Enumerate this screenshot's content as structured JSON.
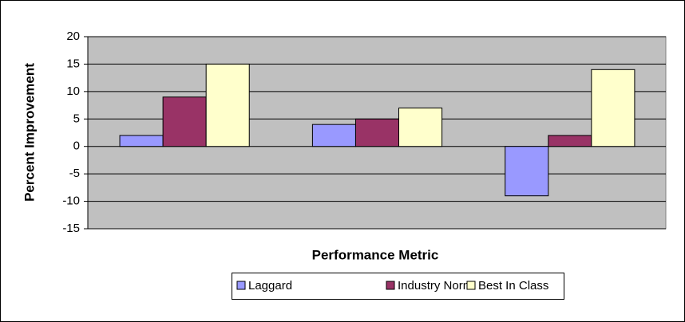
{
  "chart_data": {
    "type": "bar",
    "xlabel": "Performance Metric",
    "ylabel": "Percent Improvement",
    "categories": [
      null,
      null,
      null
    ],
    "series": [
      {
        "name": "Laggard",
        "color": "#9999ff",
        "values": [
          2,
          4,
          -9
        ]
      },
      {
        "name": "Industry Norm",
        "color": "#993366",
        "values": [
          9,
          5,
          2
        ]
      },
      {
        "name": "Best In Class",
        "color": "#ffffcc",
        "values": [
          15,
          7,
          14
        ]
      }
    ],
    "ylim": [
      -15,
      20
    ],
    "yticks": [
      -15,
      -10,
      -5,
      0,
      5,
      10,
      15,
      20
    ],
    "grid": true,
    "legend": "bottom",
    "background": "#c0c0c0"
  }
}
